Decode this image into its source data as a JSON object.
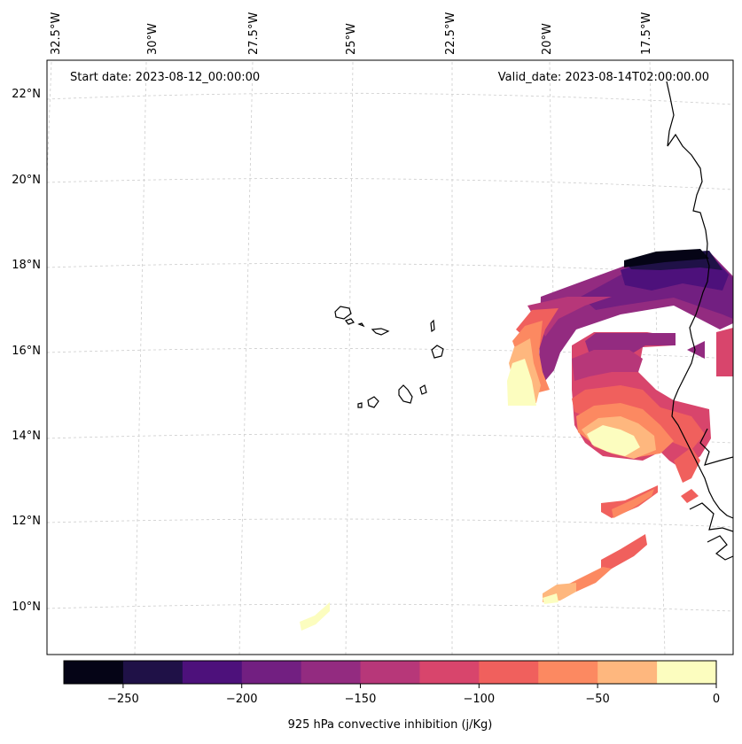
{
  "map": {
    "start_date": "Start date: 2023-08-12_00:00:00",
    "valid_date": "Valid_date: 2023-08-14T02:00:00.00",
    "lon_labels": [
      "32.5°W",
      "30°W",
      "27.5°W",
      "25°W",
      "22.5°W",
      "20°W",
      "17.5°W"
    ],
    "lat_labels": [
      "22°N",
      "20°N",
      "18°N",
      "16°N",
      "14°N",
      "12°N",
      "10°N"
    ]
  },
  "colorbar": {
    "title": "925 hPa convective inhibition (j/Kg)",
    "ticks": [
      "−250",
      "−200",
      "−150",
      "−100",
      "−50",
      "0"
    ],
    "colors": [
      "#050416",
      "#1f1147",
      "#4d117b",
      "#721f81",
      "#932b80",
      "#b73779",
      "#d8456c",
      "#f0605d",
      "#fc8961",
      "#feb77e",
      "#fcfdbf"
    ]
  }
}
